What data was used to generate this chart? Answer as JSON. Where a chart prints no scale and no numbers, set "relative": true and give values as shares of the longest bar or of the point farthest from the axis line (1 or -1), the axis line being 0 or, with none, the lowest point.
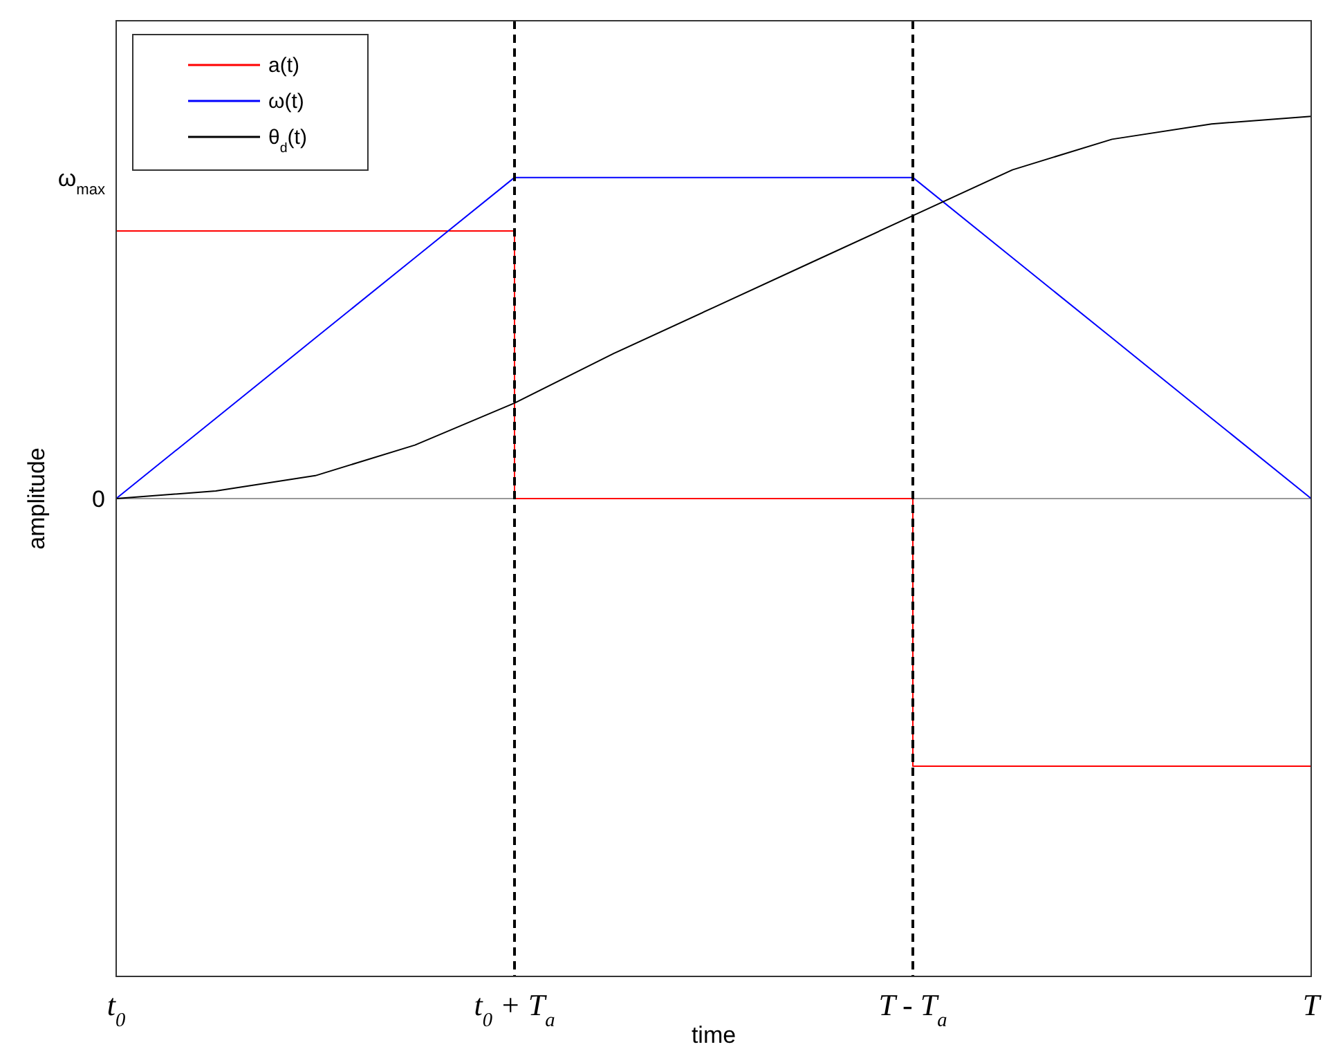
{
  "chart_data": {
    "type": "line",
    "xlabel": "time",
    "ylabel": "amplitude",
    "relative": true,
    "categories": [
      "t$_{0}$",
      null,
      null,
      null,
      "t$_{0}$ + T$_{a}$",
      null,
      null,
      null,
      "T - T$_{a}$",
      null,
      null,
      null,
      "T"
    ],
    "legend": "top left",
    "marker": "none",
    "line_style": "solid",
    "series": [
      {
        "name": "a(t)",
        "type": "step",
        "color": "#ff0000",
        "values": [
          0.7,
          0.7,
          0.7,
          0.7,
          0,
          0,
          0,
          0,
          -0.7,
          -0.7,
          -0.7,
          -0.7,
          -0.7
        ]
      },
      {
        "name": "ω(t)",
        "color": "#0000ff",
        "values": [
          0,
          0.21,
          0.42,
          0.63,
          0.84,
          0.84,
          0.84,
          0.84,
          0.84,
          0.63,
          0.42,
          0.21,
          0
        ]
      },
      {
        "name": "θ$_{d}$(t)",
        "color": "#000000",
        "values": [
          0,
          0.02,
          0.06,
          0.14,
          0.25,
          0.38,
          0.5,
          0.62,
          0.74,
          0.86,
          0.94,
          0.98,
          1
        ]
      }
    ],
    "annotations": [
      "ω$_{max}$",
      "0"
    ],
    "ref_lines": [
      {
        "axis": "x",
        "value": "t$_{0}$ + T$_{a}$",
        "color": "#000000",
        "line_style": "dashed"
      },
      {
        "axis": "x",
        "value": "T - T$_{a}$",
        "color": "#000000",
        "line_style": "dashed"
      }
    ]
  }
}
